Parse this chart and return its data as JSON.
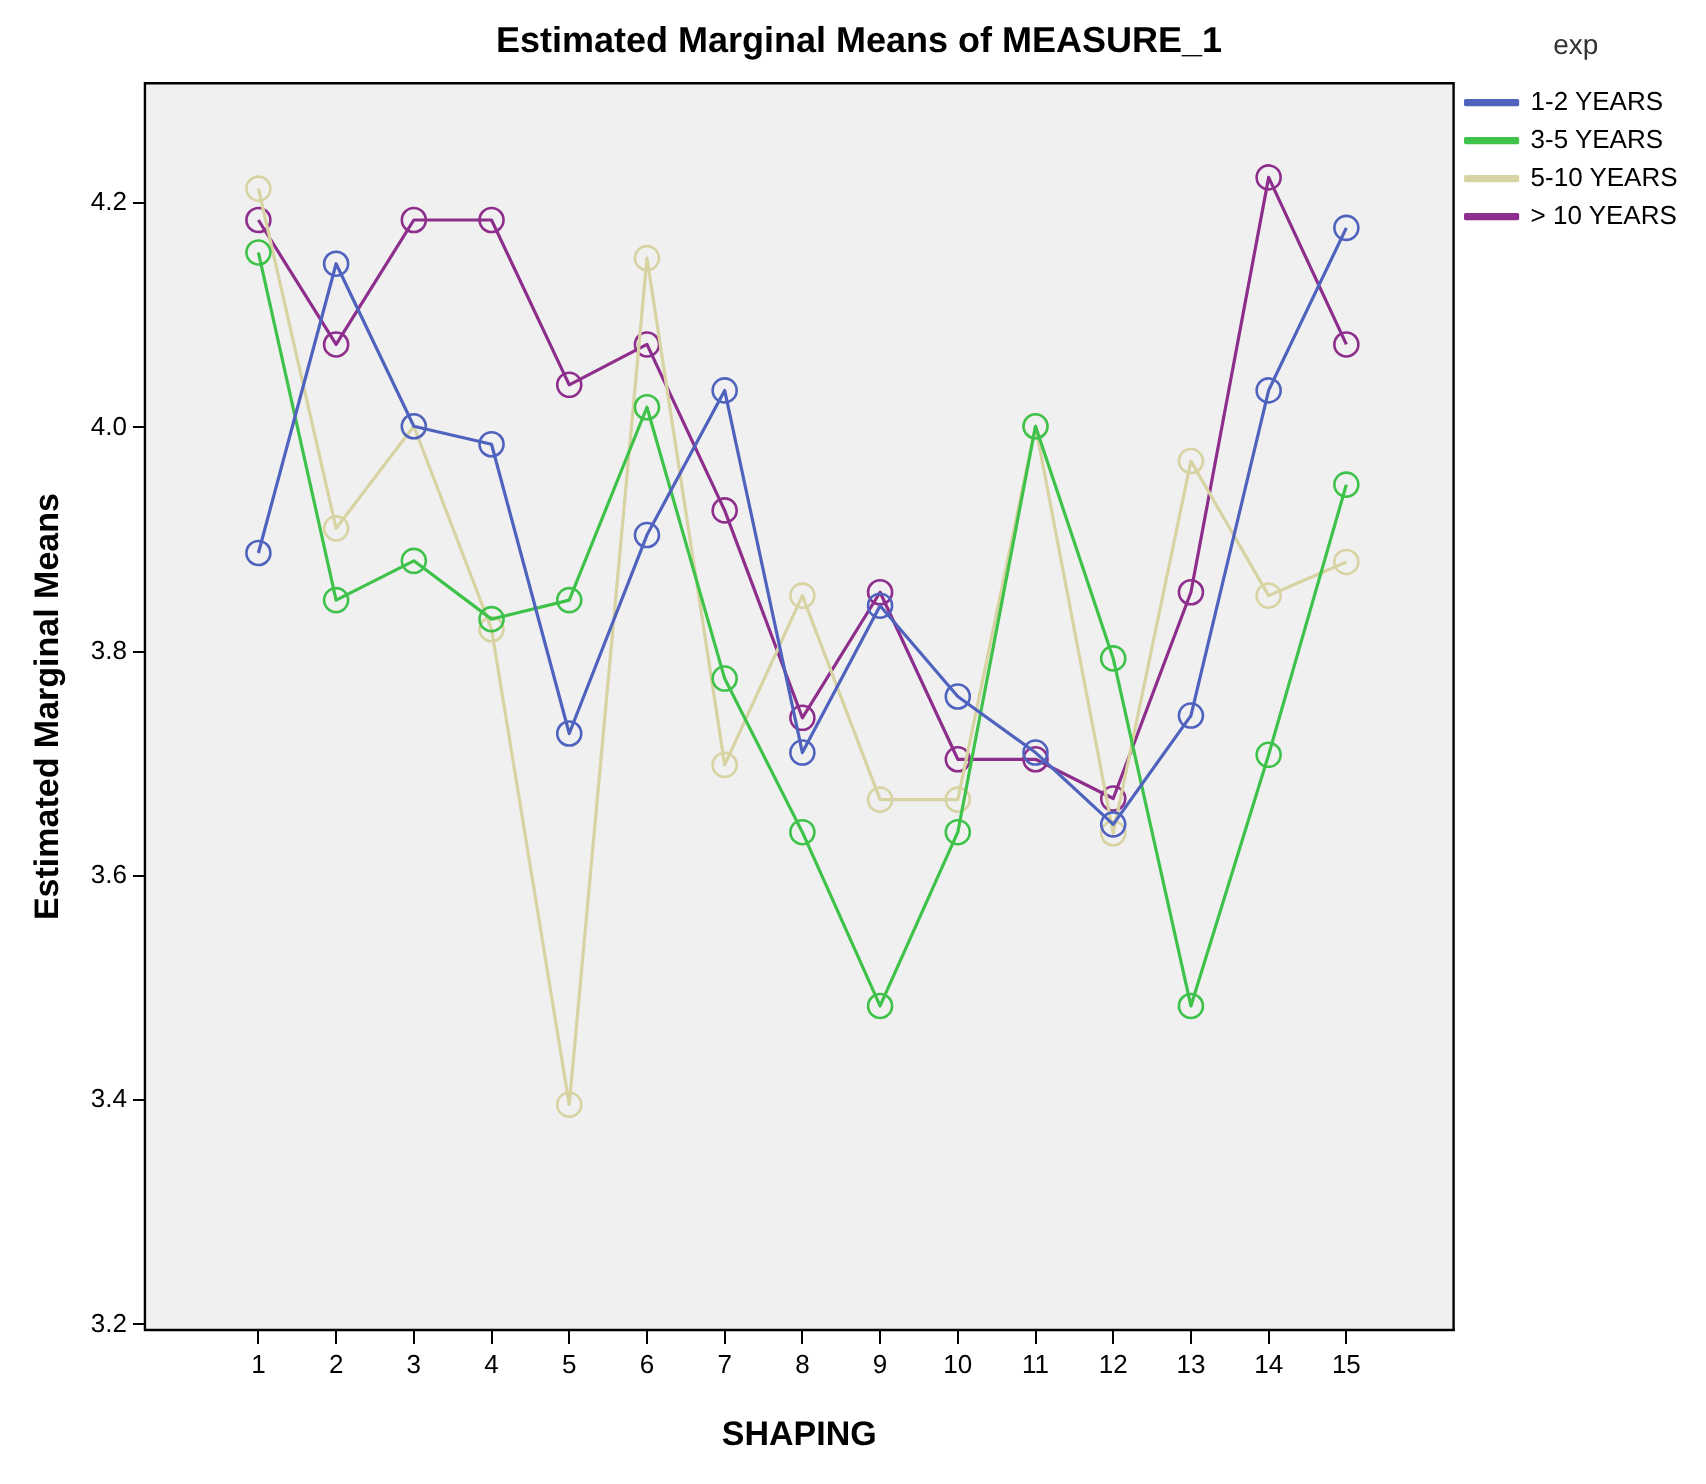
{
  "chart_data": {
    "type": "line",
    "title": "Estimated Marginal Means of MEASURE_1",
    "xlabel": "SHAPING",
    "ylabel": "Estimated Marginal Means",
    "legend_title": "exp",
    "legend": "top right",
    "marker": "circle",
    "line_style": "solid",
    "grid": false,
    "x": [
      1,
      2,
      3,
      4,
      5,
      6,
      7,
      8,
      9,
      10,
      11,
      12,
      13,
      14,
      15
    ],
    "xlim": [
      -0.46,
      16.38
    ],
    "xticks": [
      1,
      2,
      3,
      4,
      5,
      6,
      7,
      8,
      9,
      10,
      11,
      12,
      13,
      14,
      15
    ],
    "ylim": [
      3.195,
      4.307
    ],
    "yticks": [
      3.2,
      3.4,
      3.6,
      3.8,
      {
        "value": 4,
        "label": "4.0"
      },
      4.2
    ],
    "series": [
      {
        "name": "1-2 YEARS",
        "color": "#4f63be",
        "values": [
          3.888,
          4.146,
          4.001,
          3.985,
          3.727,
          3.904,
          4.033,
          3.71,
          3.841,
          3.76,
          3.71,
          3.646,
          3.743,
          4.033,
          4.178
        ]
      },
      {
        "name": "3-5 YEARS",
        "color": "#3ec24a",
        "values": [
          4.156,
          3.846,
          3.881,
          3.829,
          3.846,
          4.018,
          3.776,
          3.639,
          3.484,
          3.639,
          4.001,
          3.794,
          3.484,
          3.708,
          3.949
        ]
      },
      {
        "name": "5-10 YEARS",
        "color": "#d8d3a3",
        "values": [
          4.213,
          3.91,
          4.001,
          3.82,
          3.396,
          4.151,
          3.699,
          3.85,
          3.668,
          3.668,
          4.001,
          3.638,
          3.97,
          3.85,
          3.88
        ]
      },
      {
        "name": "> 10 YEARS",
        "color": "#8e2e8c",
        "values": [
          4.185,
          4.074,
          4.185,
          4.185,
          4.038,
          4.074,
          3.926,
          3.741,
          3.853,
          3.704,
          3.704,
          3.669,
          3.853,
          4.223,
          4.074
        ]
      }
    ]
  }
}
